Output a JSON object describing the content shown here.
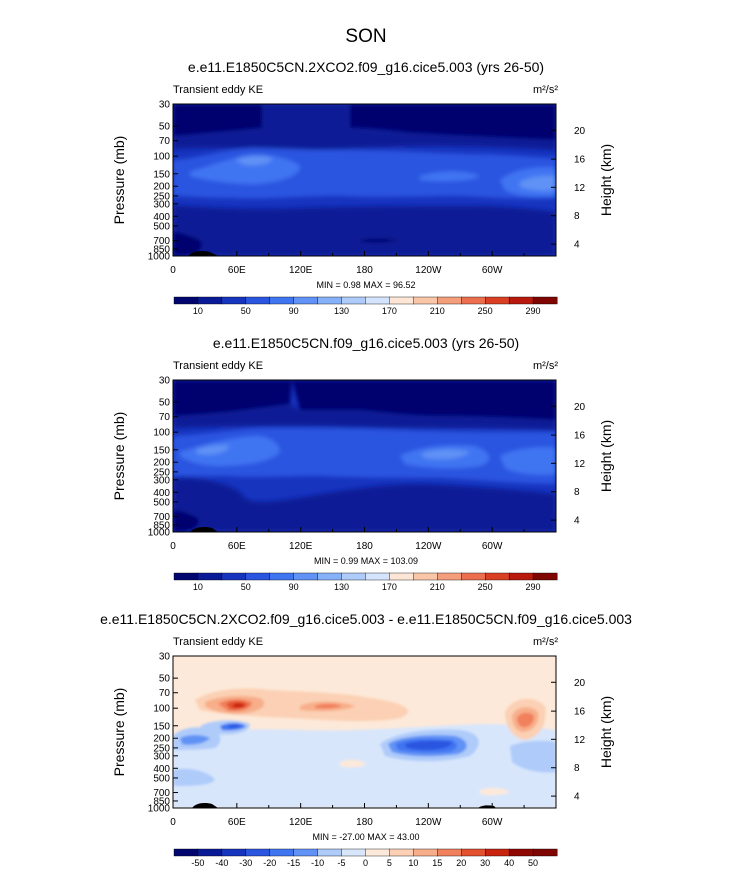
{
  "figure": {
    "title": "SON"
  },
  "chart_data": [
    {
      "type": "heatmap",
      "title": "e.e11.E1850C5CN.2XCO2.f09_g16.cice5.003 (yrs 26-50)",
      "left_label": "Transient eddy KE",
      "units_label": "m²/s²",
      "ylabel": "Pressure (mb)",
      "ylabel_right": "Height (km)",
      "x_ticks": [
        "0",
        "60E",
        "120E",
        "180",
        "120W",
        "60W"
      ],
      "x_tick_lon": [
        0,
        60,
        120,
        180,
        240,
        300
      ],
      "xlim": [
        0,
        360
      ],
      "y_ticks": [
        "30",
        "50",
        "70",
        "100",
        "150",
        "200",
        "250",
        "300",
        "400",
        "500",
        "700",
        "850",
        "1000"
      ],
      "y_tick_values": [
        30,
        50,
        70,
        100,
        150,
        200,
        250,
        300,
        400,
        500,
        700,
        850,
        1000
      ],
      "y_scale": "log",
      "ylim": [
        30,
        1000
      ],
      "height_ticks": [
        "20",
        "16",
        "12",
        "8",
        "4"
      ],
      "height_tick_pressure": [
        55,
        107,
        205,
        395,
        760
      ],
      "min_max_text": "MIN =   0.98   MAX =  96.52",
      "min": 0.98,
      "max": 96.52,
      "colorbar": {
        "labels": [
          "10",
          "50",
          "90",
          "130",
          "170",
          "210",
          "250",
          "290"
        ],
        "levels": [
          10,
          30,
          50,
          70,
          90,
          110,
          130,
          150,
          170,
          190,
          210,
          230,
          250,
          270,
          290
        ],
        "colors": [
          "#00066e",
          "#0a1a96",
          "#1734bf",
          "#2a55e0",
          "#4075f2",
          "#6192f5",
          "#86b1f8",
          "#aecbfa",
          "#d4e4fc",
          "#fde6d6",
          "#f9c6a8",
          "#f59e7c",
          "#ec6e4e",
          "#da3e23",
          "#b8190c",
          "#7e0500"
        ]
      }
    },
    {
      "type": "heatmap",
      "title": "e.e11.E1850C5CN.f09_g16.cice5.003 (yrs 26-50)",
      "left_label": "Transient eddy KE",
      "units_label": "m²/s²",
      "ylabel": "Pressure (mb)",
      "ylabel_right": "Height (km)",
      "x_ticks": [
        "0",
        "60E",
        "120E",
        "180",
        "120W",
        "60W"
      ],
      "y_ticks": [
        "30",
        "50",
        "70",
        "100",
        "150",
        "200",
        "250",
        "300",
        "400",
        "500",
        "700",
        "850",
        "1000"
      ],
      "height_ticks": [
        "20",
        "16",
        "12",
        "8",
        "4"
      ],
      "min_max_text": "MIN =   0.99   MAX = 103.09",
      "min": 0.99,
      "max": 103.09,
      "colorbar": {
        "labels": [
          "10",
          "50",
          "90",
          "130",
          "170",
          "210",
          "250",
          "290"
        ]
      }
    },
    {
      "type": "heatmap",
      "title": "e.e11.E1850C5CN.2XCO2.f09_g16.cice5.003 - e.e11.E1850C5CN.f09_g16.cice5.003",
      "left_label": "Transient eddy KE",
      "units_label": "m²/s²",
      "ylabel": "Pressure (mb)",
      "ylabel_right": "Height (km)",
      "x_ticks": [
        "0",
        "60E",
        "120E",
        "180",
        "120W",
        "60W"
      ],
      "y_ticks": [
        "30",
        "50",
        "70",
        "100",
        "150",
        "200",
        "250",
        "300",
        "400",
        "500",
        "700",
        "850",
        "1000"
      ],
      "height_ticks": [
        "20",
        "16",
        "12",
        "8",
        "4"
      ],
      "min_max_text": "MIN = -27.00   MAX =  43.00",
      "min": -27.0,
      "max": 43.0,
      "colorbar": {
        "labels": [
          "-50",
          "-40",
          "-30",
          "-20",
          "-15",
          "-10",
          "-5",
          "0",
          "5",
          "10",
          "15",
          "20",
          "30",
          "40",
          "50"
        ],
        "levels": [
          -50,
          -40,
          -30,
          -20,
          -15,
          -10,
          -5,
          0,
          5,
          10,
          15,
          20,
          30,
          40,
          50
        ],
        "colors": [
          "#00066e",
          "#0a1a96",
          "#1734bf",
          "#2a55e0",
          "#4075f2",
          "#6192f5",
          "#aecbfa",
          "#d8e6fb",
          "#fde9d9",
          "#fbd0b4",
          "#f8ae8a",
          "#f1805c",
          "#e4512f",
          "#c9240f",
          "#8e0700",
          "#7e0500"
        ]
      }
    }
  ]
}
